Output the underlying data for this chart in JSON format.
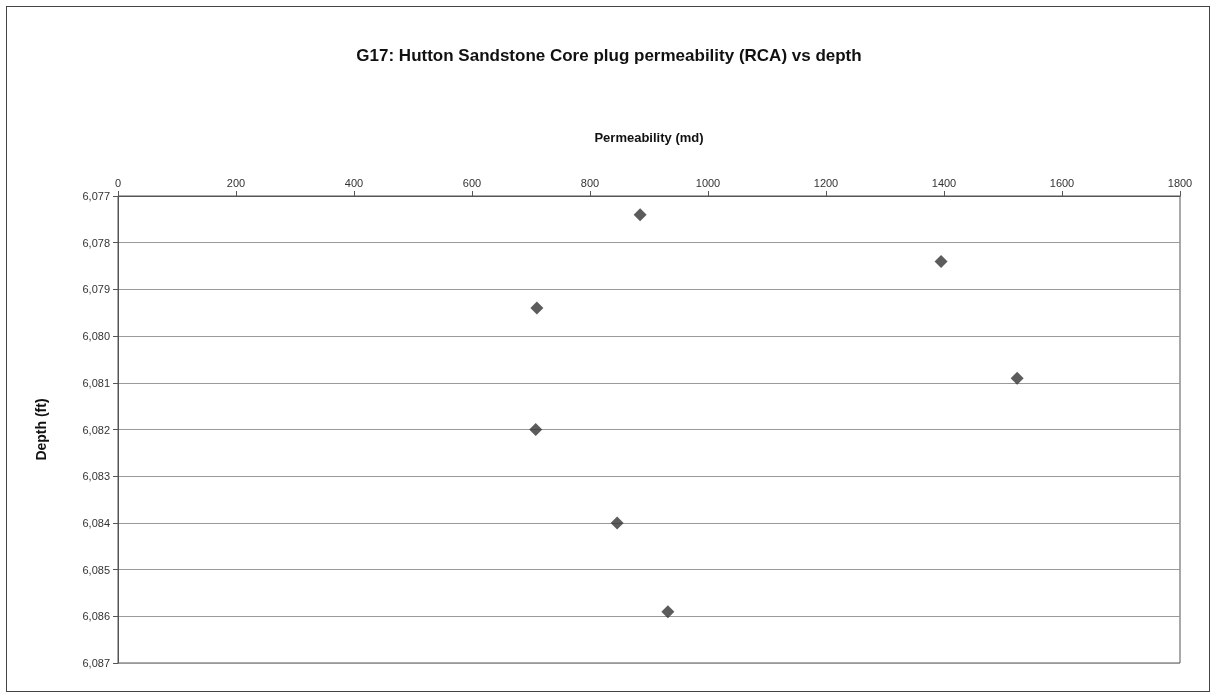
{
  "chart_data": {
    "type": "scatter",
    "title": "G17: Hutton Sandstone Core plug permeability (RCA) vs depth",
    "xlabel": "Permeability (md)",
    "ylabel": "Depth (ft)",
    "xlim": [
      0,
      1800
    ],
    "xticks": [
      0,
      200,
      400,
      600,
      800,
      1000,
      1200,
      1400,
      1600,
      1800
    ],
    "ylim": [
      6087,
      6077
    ],
    "yticks": [
      {
        "value": 6077,
        "label": "6,077"
      },
      {
        "value": 6078,
        "label": "6,078"
      },
      {
        "value": 6079,
        "label": "6,079"
      },
      {
        "value": 6080,
        "label": "6,080"
      },
      {
        "value": 6081,
        "label": "6,081"
      },
      {
        "value": 6082,
        "label": "6,082"
      },
      {
        "value": 6083,
        "label": "6,083"
      },
      {
        "value": 6084,
        "label": "6,084"
      },
      {
        "value": 6085,
        "label": "6,085"
      },
      {
        "value": 6086,
        "label": "6,086"
      },
      {
        "value": 6087,
        "label": "6,087"
      }
    ],
    "series": [
      {
        "color": "#333333",
        "x": [
          885,
          1395,
          710,
          1524,
          708,
          846,
          932
        ],
        "values": [
          6077.4,
          6078.4,
          6079.4,
          6080.9,
          6082.0,
          6084.0,
          6085.9
        ]
      }
    ],
    "marker": "diamond",
    "grid": "y"
  }
}
